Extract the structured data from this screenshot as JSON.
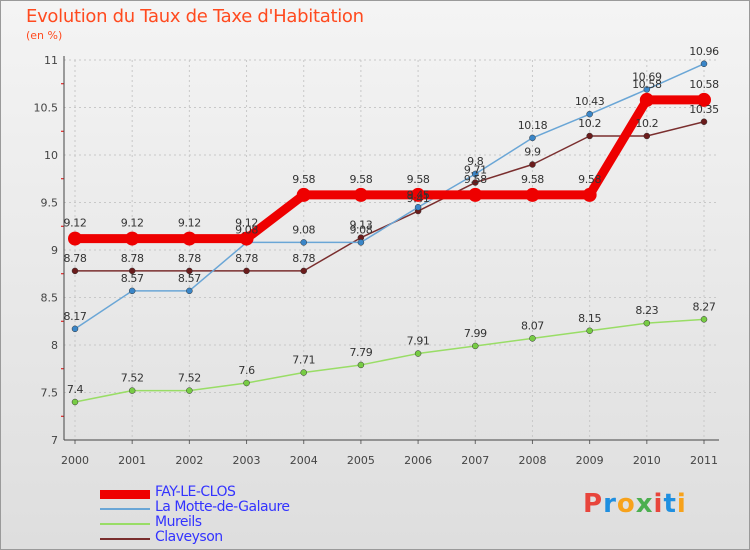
{
  "title": "Evolution du Taux de Taxe d'Habitation",
  "unit": "(en %)",
  "logo": {
    "text": "Proxiti",
    "colors": [
      "#e8453c",
      "#1f8fe0",
      "#f7a21b",
      "#4caf50",
      "#e8453c",
      "#1f8fe0",
      "#f7a21b"
    ]
  },
  "chart_data": {
    "type": "line",
    "x": [
      2000,
      2001,
      2002,
      2003,
      2004,
      2005,
      2006,
      2007,
      2008,
      2009,
      2010,
      2011
    ],
    "ylim": [
      7,
      11
    ],
    "yticks": [
      7,
      7.5,
      8,
      8.5,
      9,
      9.5,
      10,
      10.5,
      11
    ],
    "ytick_labels": [
      "7",
      "7.5",
      "8",
      "8.5",
      "9",
      "9.5",
      "10",
      "10.5",
      "11"
    ],
    "grid": true,
    "legend": "bottom-left",
    "series": [
      {
        "name": "Claveyson",
        "color": "#7a2e2e",
        "marker": "#6b1c1c",
        "width": 1.5,
        "radius": 3,
        "values": [
          8.78,
          8.78,
          8.78,
          8.78,
          8.78,
          9.13,
          9.41,
          9.71,
          9.9,
          10.2,
          10.2,
          10.35
        ],
        "labels": [
          "8.78",
          "8.78",
          "8.78",
          "8.78",
          "8.78",
          "9.13",
          "9.41",
          "9.71",
          "9.9",
          "10.2",
          "10.2",
          "10.35"
        ]
      },
      {
        "name": "La Motte-de-Galaure",
        "color": "#6aa6d6",
        "marker": "#3a86c8",
        "width": 1.5,
        "radius": 3,
        "values": [
          8.17,
          8.57,
          8.57,
          9.08,
          9.08,
          9.08,
          9.45,
          9.8,
          10.18,
          10.43,
          10.69,
          10.96
        ],
        "labels": [
          "8.17",
          "8.57",
          "8.57",
          "9.08",
          "9.08",
          "9.08",
          "9.45",
          "9.8",
          "10.18",
          "10.43",
          "10.69",
          "10.96"
        ]
      },
      {
        "name": "Mureils",
        "color": "#99dd66",
        "marker": "#77cc44",
        "width": 1.5,
        "radius": 3,
        "values": [
          7.4,
          7.52,
          7.52,
          7.6,
          7.71,
          7.79,
          7.91,
          7.99,
          8.07,
          8.15,
          8.23,
          8.27
        ],
        "labels": [
          "7.4",
          "7.52",
          "7.52",
          "7.6",
          "7.71",
          "7.79",
          "7.91",
          "7.99",
          "8.07",
          "8.15",
          "8.23",
          "8.27"
        ]
      },
      {
        "name": "FAY-LE-CLOS",
        "color": "#ee0000",
        "marker": "#ee0000",
        "width": 9,
        "radius": 7,
        "values": [
          9.12,
          9.12,
          9.12,
          9.12,
          9.58,
          9.58,
          9.58,
          9.58,
          9.58,
          9.58,
          10.58,
          10.58
        ],
        "labels": [
          "9.12",
          "9.12",
          "9.12",
          "9.12",
          "9.58",
          "9.58",
          "9.58",
          "9.58",
          "9.58",
          "9.58",
          "10.58",
          "10.58"
        ]
      }
    ],
    "legend_order": [
      "FAY-LE-CLOS",
      "La Motte-de-Galaure",
      "Mureils",
      "Claveyson"
    ]
  }
}
